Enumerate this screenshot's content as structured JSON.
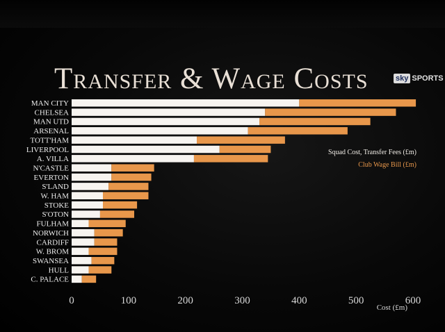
{
  "title": "Transfer & Wage Costs",
  "logo": {
    "sky": "sky",
    "sports": "SPORTS"
  },
  "chart_data": {
    "type": "bar",
    "orientation": "horizontal",
    "stacked": true,
    "categories": [
      "MAN CITY",
      "CHELSEA",
      "MAN UTD",
      "ARSENAL",
      "TOTT'HAM",
      "LIVERPOOL",
      "A. VILLA",
      "N'CASTLE",
      "EVERTON",
      "S'LAND",
      "W. HAM",
      "STOKE",
      "S'OTON",
      "FULHAM",
      "NORWICH",
      "CARDIFF",
      "W. BROM",
      "SWANSEA",
      "HULL",
      "C. PALACE"
    ],
    "series": [
      {
        "name": "Squad Cost, Transfer Fees (£m)",
        "color": "#f7f4f0",
        "values": [
          400,
          340,
          330,
          310,
          220,
          260,
          215,
          70,
          70,
          65,
          55,
          55,
          50,
          30,
          40,
          40,
          30,
          35,
          30,
          18
        ]
      },
      {
        "name": "Club Wage Bill (£m)",
        "color": "#e8974b",
        "values": [
          205,
          230,
          195,
          175,
          155,
          90,
          130,
          75,
          70,
          70,
          80,
          60,
          60,
          65,
          50,
          40,
          50,
          40,
          40,
          25
        ]
      }
    ],
    "xlabel": "Cost (£m)",
    "xticks": [
      0,
      100,
      200,
      300,
      400,
      500,
      600
    ],
    "xlim": [
      0,
      600
    ],
    "grid": false,
    "legend_position": "right"
  }
}
